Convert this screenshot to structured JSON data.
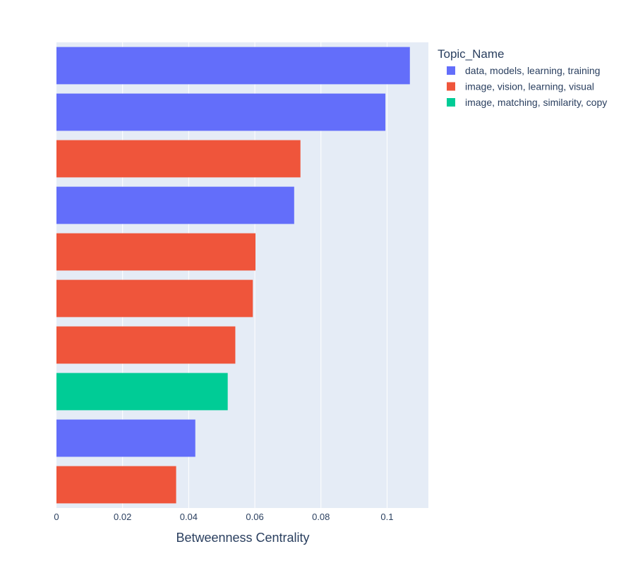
{
  "chart_data": {
    "type": "bar",
    "orientation": "horizontal",
    "xlabel": "Betweenness Centrality",
    "ylabel": "",
    "xlim": [
      0,
      0.1125
    ],
    "x_ticks": [
      0,
      0.02,
      0.04,
      0.06,
      0.08,
      0.1
    ],
    "x_tick_labels": [
      "0",
      "0.02",
      "0.04",
      "0.06",
      "0.08",
      "0.1"
    ],
    "grid": true,
    "legend": {
      "title": "Topic_Name",
      "placement": "right"
    },
    "series": [
      {
        "name": "data, models, learning, training",
        "color": "#636efa"
      },
      {
        "name": "image, vision, learning, visual",
        "color": "#ef553b"
      },
      {
        "name": "image, matching, similarity, copy",
        "color": "#00cc96"
      }
    ],
    "bars": [
      {
        "value": 0.1069,
        "series": 0
      },
      {
        "value": 0.0995,
        "series": 0
      },
      {
        "value": 0.0738,
        "series": 1
      },
      {
        "value": 0.0719,
        "series": 0
      },
      {
        "value": 0.0602,
        "series": 1
      },
      {
        "value": 0.0594,
        "series": 1
      },
      {
        "value": 0.0541,
        "series": 1
      },
      {
        "value": 0.0518,
        "series": 2
      },
      {
        "value": 0.042,
        "series": 0
      },
      {
        "value": 0.0362,
        "series": 1
      }
    ]
  }
}
